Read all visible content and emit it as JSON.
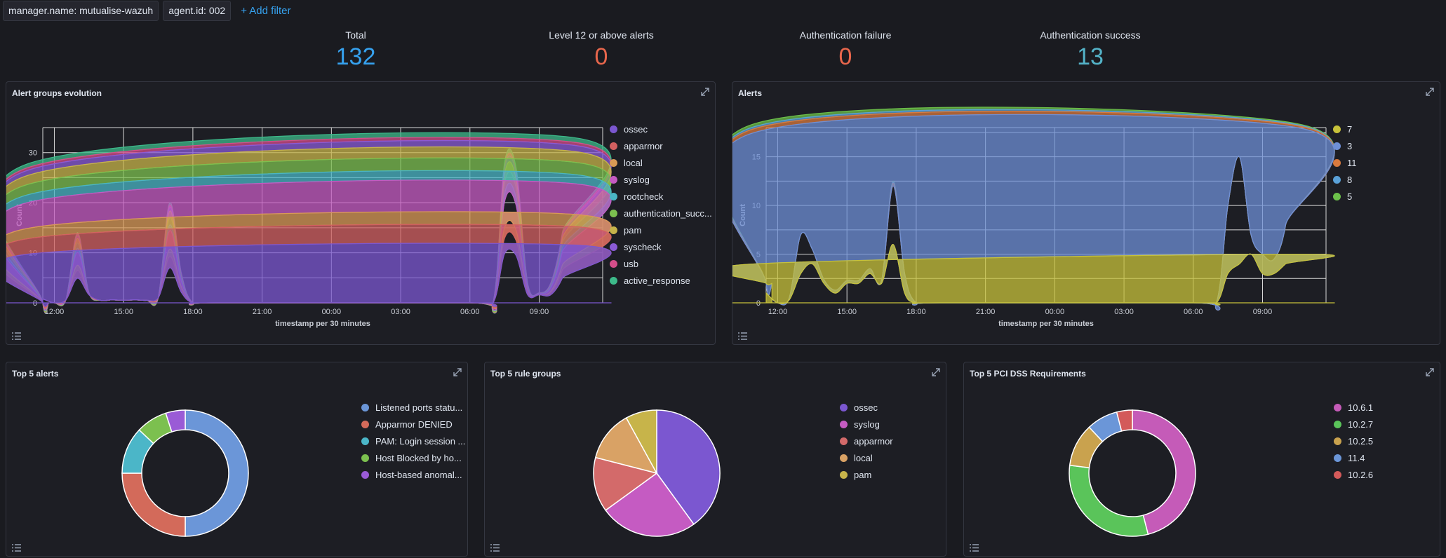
{
  "filters": [
    {
      "label": "manager.name: mutualise-wazuh"
    },
    {
      "label": "agent.id: 002"
    }
  ],
  "add_filter_label": "+ Add filter",
  "metrics": [
    {
      "label": "Total",
      "value": "132",
      "color": "#36a2ef"
    },
    {
      "label": "Level 12 or above alerts",
      "value": "0",
      "color": "#e7664c"
    },
    {
      "label": "Authentication failure",
      "value": "0",
      "color": "#e7664c"
    },
    {
      "label": "Authentication success",
      "value": "13",
      "color": "#54b3c8"
    }
  ],
  "panels": {
    "alert_groups": {
      "title": "Alert groups evolution"
    },
    "alerts": {
      "title": "Alerts"
    },
    "top5_alerts": {
      "title": "Top 5 alerts"
    },
    "top5_rule_groups": {
      "title": "Top 5 rule groups"
    },
    "top5_pci": {
      "title": "Top 5 PCI DSS Requirements"
    }
  },
  "icons": {
    "expand": "expand-icon",
    "list": "list-icon"
  },
  "chart_data": [
    {
      "type": "area",
      "title": "Alert groups evolution",
      "xlabel": "timestamp per 30 minutes",
      "ylabel": "Count",
      "x_ticks": [
        "12:00",
        "15:00",
        "18:00",
        "21:00",
        "00:00",
        "03:00",
        "06:00",
        "09:00"
      ],
      "y_ticks": [
        0,
        10,
        20,
        30
      ],
      "ylim": [
        0,
        35
      ],
      "grid": true,
      "legend_position": "right",
      "series": [
        {
          "name": "ossec",
          "color": "#7b57d0",
          "points": [
            [
              11.5,
              1
            ],
            [
              12.5,
              0
            ],
            [
              13,
              3
            ],
            [
              13.5,
              1
            ],
            [
              14,
              0.5
            ],
            [
              15,
              2
            ],
            [
              16,
              2
            ],
            [
              16.5,
              1
            ],
            [
              17,
              4
            ],
            [
              17.5,
              2
            ],
            [
              18,
              0
            ],
            [
              19,
              0
            ],
            [
              7,
              0
            ],
            [
              7.5,
              3
            ],
            [
              8,
              5
            ],
            [
              8.5,
              4
            ],
            [
              9,
              2
            ],
            [
              9.5,
              3
            ],
            [
              10,
              4
            ],
            [
              10.5,
              7
            ],
            [
              11,
              6
            ],
            [
              11.5,
              4
            ]
          ]
        },
        {
          "name": "apparmor",
          "color": "#d36060",
          "points": [
            [
              13,
              3
            ],
            [
              17,
              3
            ],
            [
              8,
              6
            ],
            [
              10.5,
              5
            ]
          ]
        },
        {
          "name": "local",
          "color": "#d99a55",
          "points": [
            [
              13,
              2
            ],
            [
              17,
              2
            ],
            [
              8,
              4
            ],
            [
              10.5,
              3
            ]
          ]
        },
        {
          "name": "syslog",
          "color": "#c55bc2",
          "points": [
            [
              13,
              4
            ],
            [
              17,
              4
            ],
            [
              8,
              8
            ],
            [
              10.5,
              6
            ]
          ]
        },
        {
          "name": "rootcheck",
          "color": "#4ab5c4",
          "points": [
            [
              17,
              2
            ],
            [
              10.5,
              1
            ]
          ]
        },
        {
          "name": "authentication_succ...",
          "color": "#7cc04f",
          "points": [
            [
              17,
              1
            ],
            [
              8,
              2
            ],
            [
              10.5,
              2
            ]
          ]
        },
        {
          "name": "pam",
          "color": "#c7b44a",
          "points": [
            [
              13,
              1
            ],
            [
              17,
              1
            ],
            [
              8,
              3
            ],
            [
              10.5,
              3
            ]
          ]
        },
        {
          "name": "syscheck",
          "color": "#8a5bd6",
          "points": [
            [
              8,
              1
            ],
            [
              10.5,
              1
            ]
          ]
        },
        {
          "name": "usb",
          "color": "#d44e8a",
          "points": [
            [
              10.5,
              1
            ]
          ]
        },
        {
          "name": "active_response",
          "color": "#3dba8a",
          "points": [
            [
              17,
              1
            ],
            [
              8,
              1
            ],
            [
              10.5,
              4
            ]
          ]
        }
      ]
    },
    {
      "type": "area",
      "title": "Alerts",
      "xlabel": "timestamp per 30 minutes",
      "ylabel": "Count",
      "x_ticks": [
        "12:00",
        "15:00",
        "18:00",
        "21:00",
        "00:00",
        "03:00",
        "06:00",
        "09:00"
      ],
      "y_ticks": [
        0,
        5,
        10,
        15
      ],
      "ylim": [
        0,
        18
      ],
      "grid": true,
      "legend_position": "right",
      "series": [
        {
          "name": "7",
          "color": "#c7c23a"
        },
        {
          "name": "3",
          "color": "#6e8fd6"
        },
        {
          "name": "11",
          "color": "#d87a3e"
        },
        {
          "name": "8",
          "color": "#5aa1d8"
        },
        {
          "name": "5",
          "color": "#6cc04a"
        }
      ]
    },
    {
      "type": "pie",
      "title": "Top 5 alerts",
      "donut": true,
      "slices": [
        {
          "name": "Listened ports statu...",
          "value": 50,
          "color": "#6b96d8"
        },
        {
          "name": "Apparmor DENIED",
          "value": 25,
          "color": "#d36a5a"
        },
        {
          "name": "PAM: Login session ...",
          "value": 12,
          "color": "#4bb6c8"
        },
        {
          "name": "Host Blocked by ho...",
          "value": 8,
          "color": "#7cc04f"
        },
        {
          "name": "Host-based anomal...",
          "value": 5,
          "color": "#9a5bd6"
        }
      ]
    },
    {
      "type": "pie",
      "title": "Top 5 rule groups",
      "donut": false,
      "slices": [
        {
          "name": "ossec",
          "value": 40,
          "color": "#7b57d0"
        },
        {
          "name": "syslog",
          "value": 25,
          "color": "#c55bc2"
        },
        {
          "name": "apparmor",
          "value": 14,
          "color": "#d36a6a"
        },
        {
          "name": "local",
          "value": 13,
          "color": "#d9a265"
        },
        {
          "name": "pam",
          "value": 8,
          "color": "#c7b44a"
        }
      ]
    },
    {
      "type": "pie",
      "title": "Top 5 PCI DSS Requirements",
      "donut": true,
      "slices": [
        {
          "name": "10.6.1",
          "value": 46,
          "color": "#c55bb8"
        },
        {
          "name": "10.2.7",
          "value": 31,
          "color": "#5ac45a"
        },
        {
          "name": "10.2.5",
          "value": 11,
          "color": "#c9a24e"
        },
        {
          "name": "11.4",
          "value": 8,
          "color": "#6b96d8"
        },
        {
          "name": "10.2.6",
          "value": 4,
          "color": "#d35a5a"
        }
      ]
    }
  ]
}
